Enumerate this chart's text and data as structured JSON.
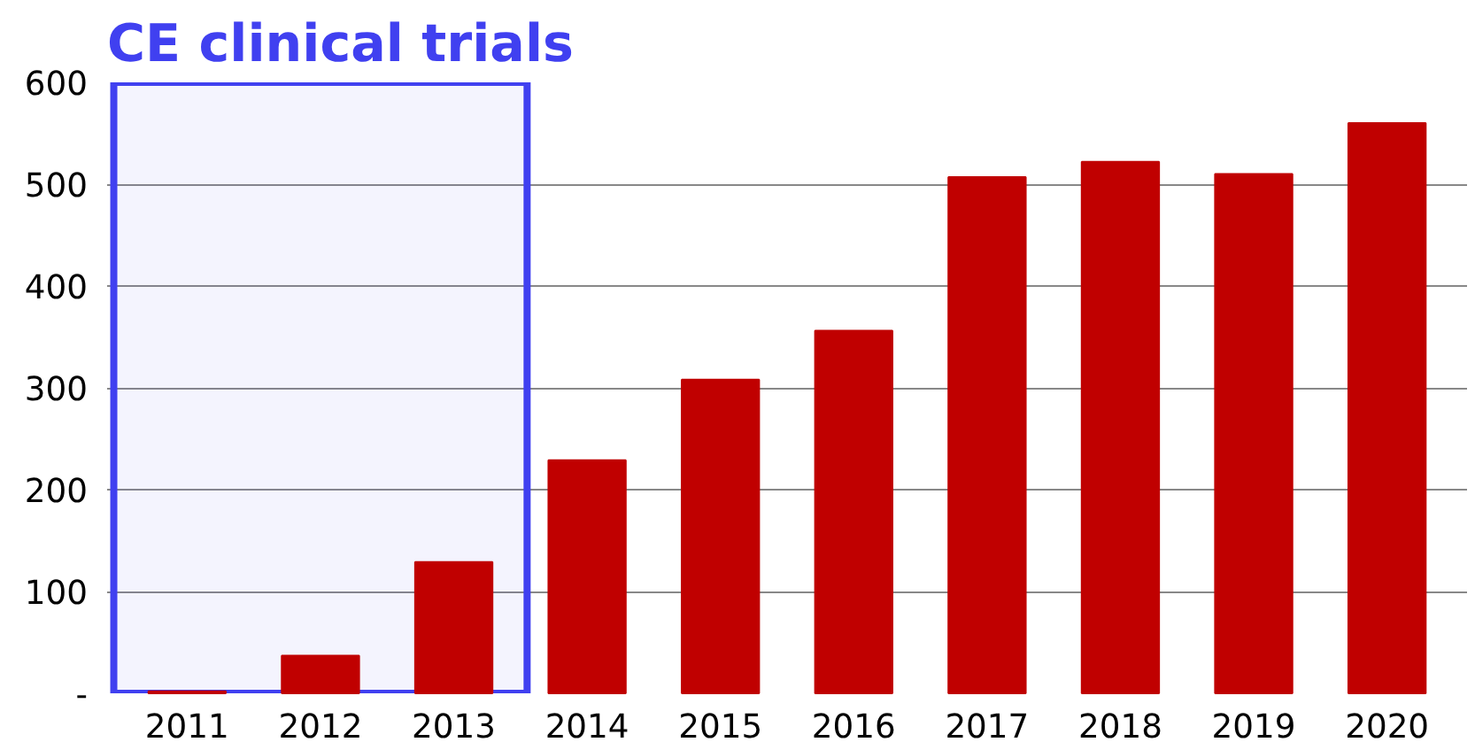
{
  "chart_data": {
    "type": "bar",
    "title": "CE clinical trials",
    "categories": [
      "2011",
      "2012",
      "2013",
      "2014",
      "2015",
      "2016",
      "2017",
      "2018",
      "2019",
      "2020"
    ],
    "values": [
      2,
      37,
      129,
      229,
      308,
      356,
      507,
      522,
      510,
      560
    ],
    "color": "#c00000",
    "ylim": [
      0,
      600
    ],
    "yticks": [
      {
        "value": 0,
        "label": "-"
      },
      100,
      200,
      300,
      400,
      500,
      600
    ],
    "grid": "y",
    "bands": [
      {
        "axis": "x",
        "from": "2011",
        "to": "2013",
        "color": "#4040f0"
      }
    ]
  }
}
